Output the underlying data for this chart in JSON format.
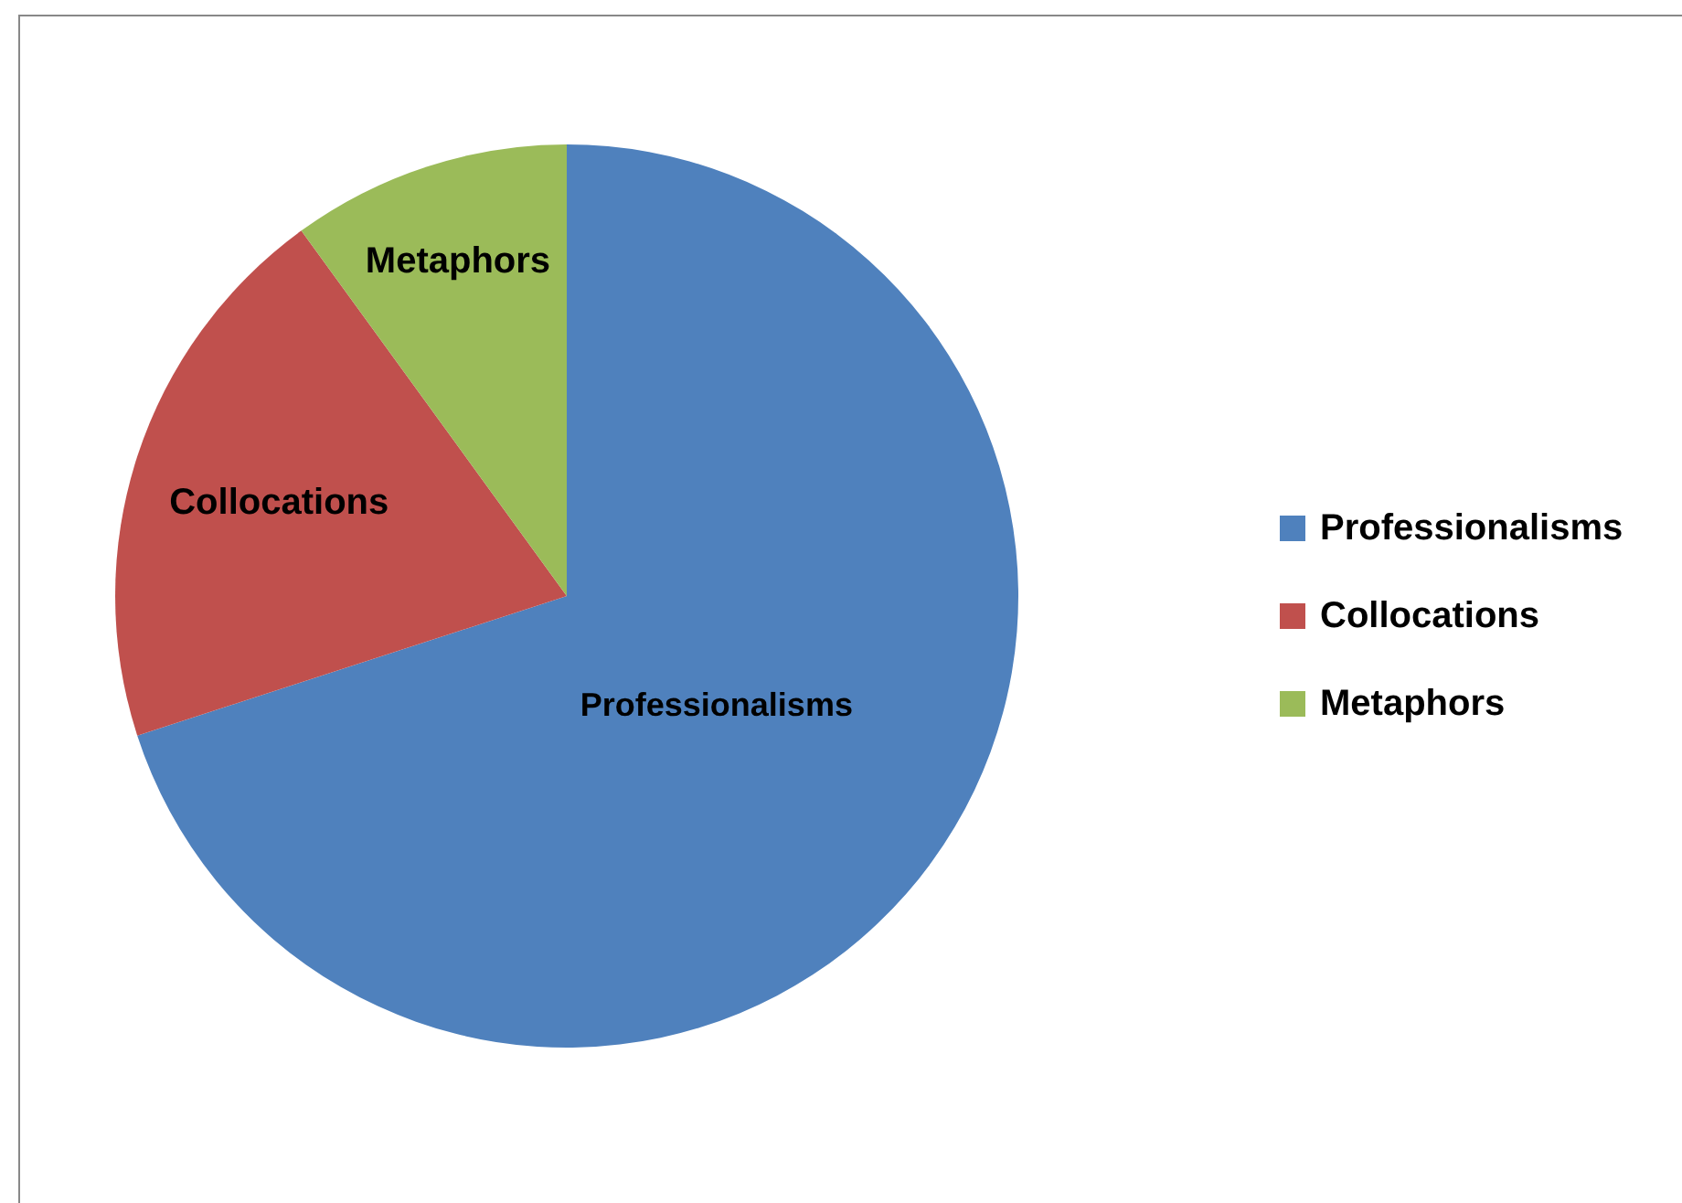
{
  "chart_data": {
    "type": "pie",
    "categories": [
      "Professionalisms",
      "Collocations",
      "Metaphors"
    ],
    "values": [
      70,
      20,
      10
    ],
    "colors": [
      "#4f81bd",
      "#c0504d",
      "#9bbb59"
    ],
    "legend": "right"
  }
}
